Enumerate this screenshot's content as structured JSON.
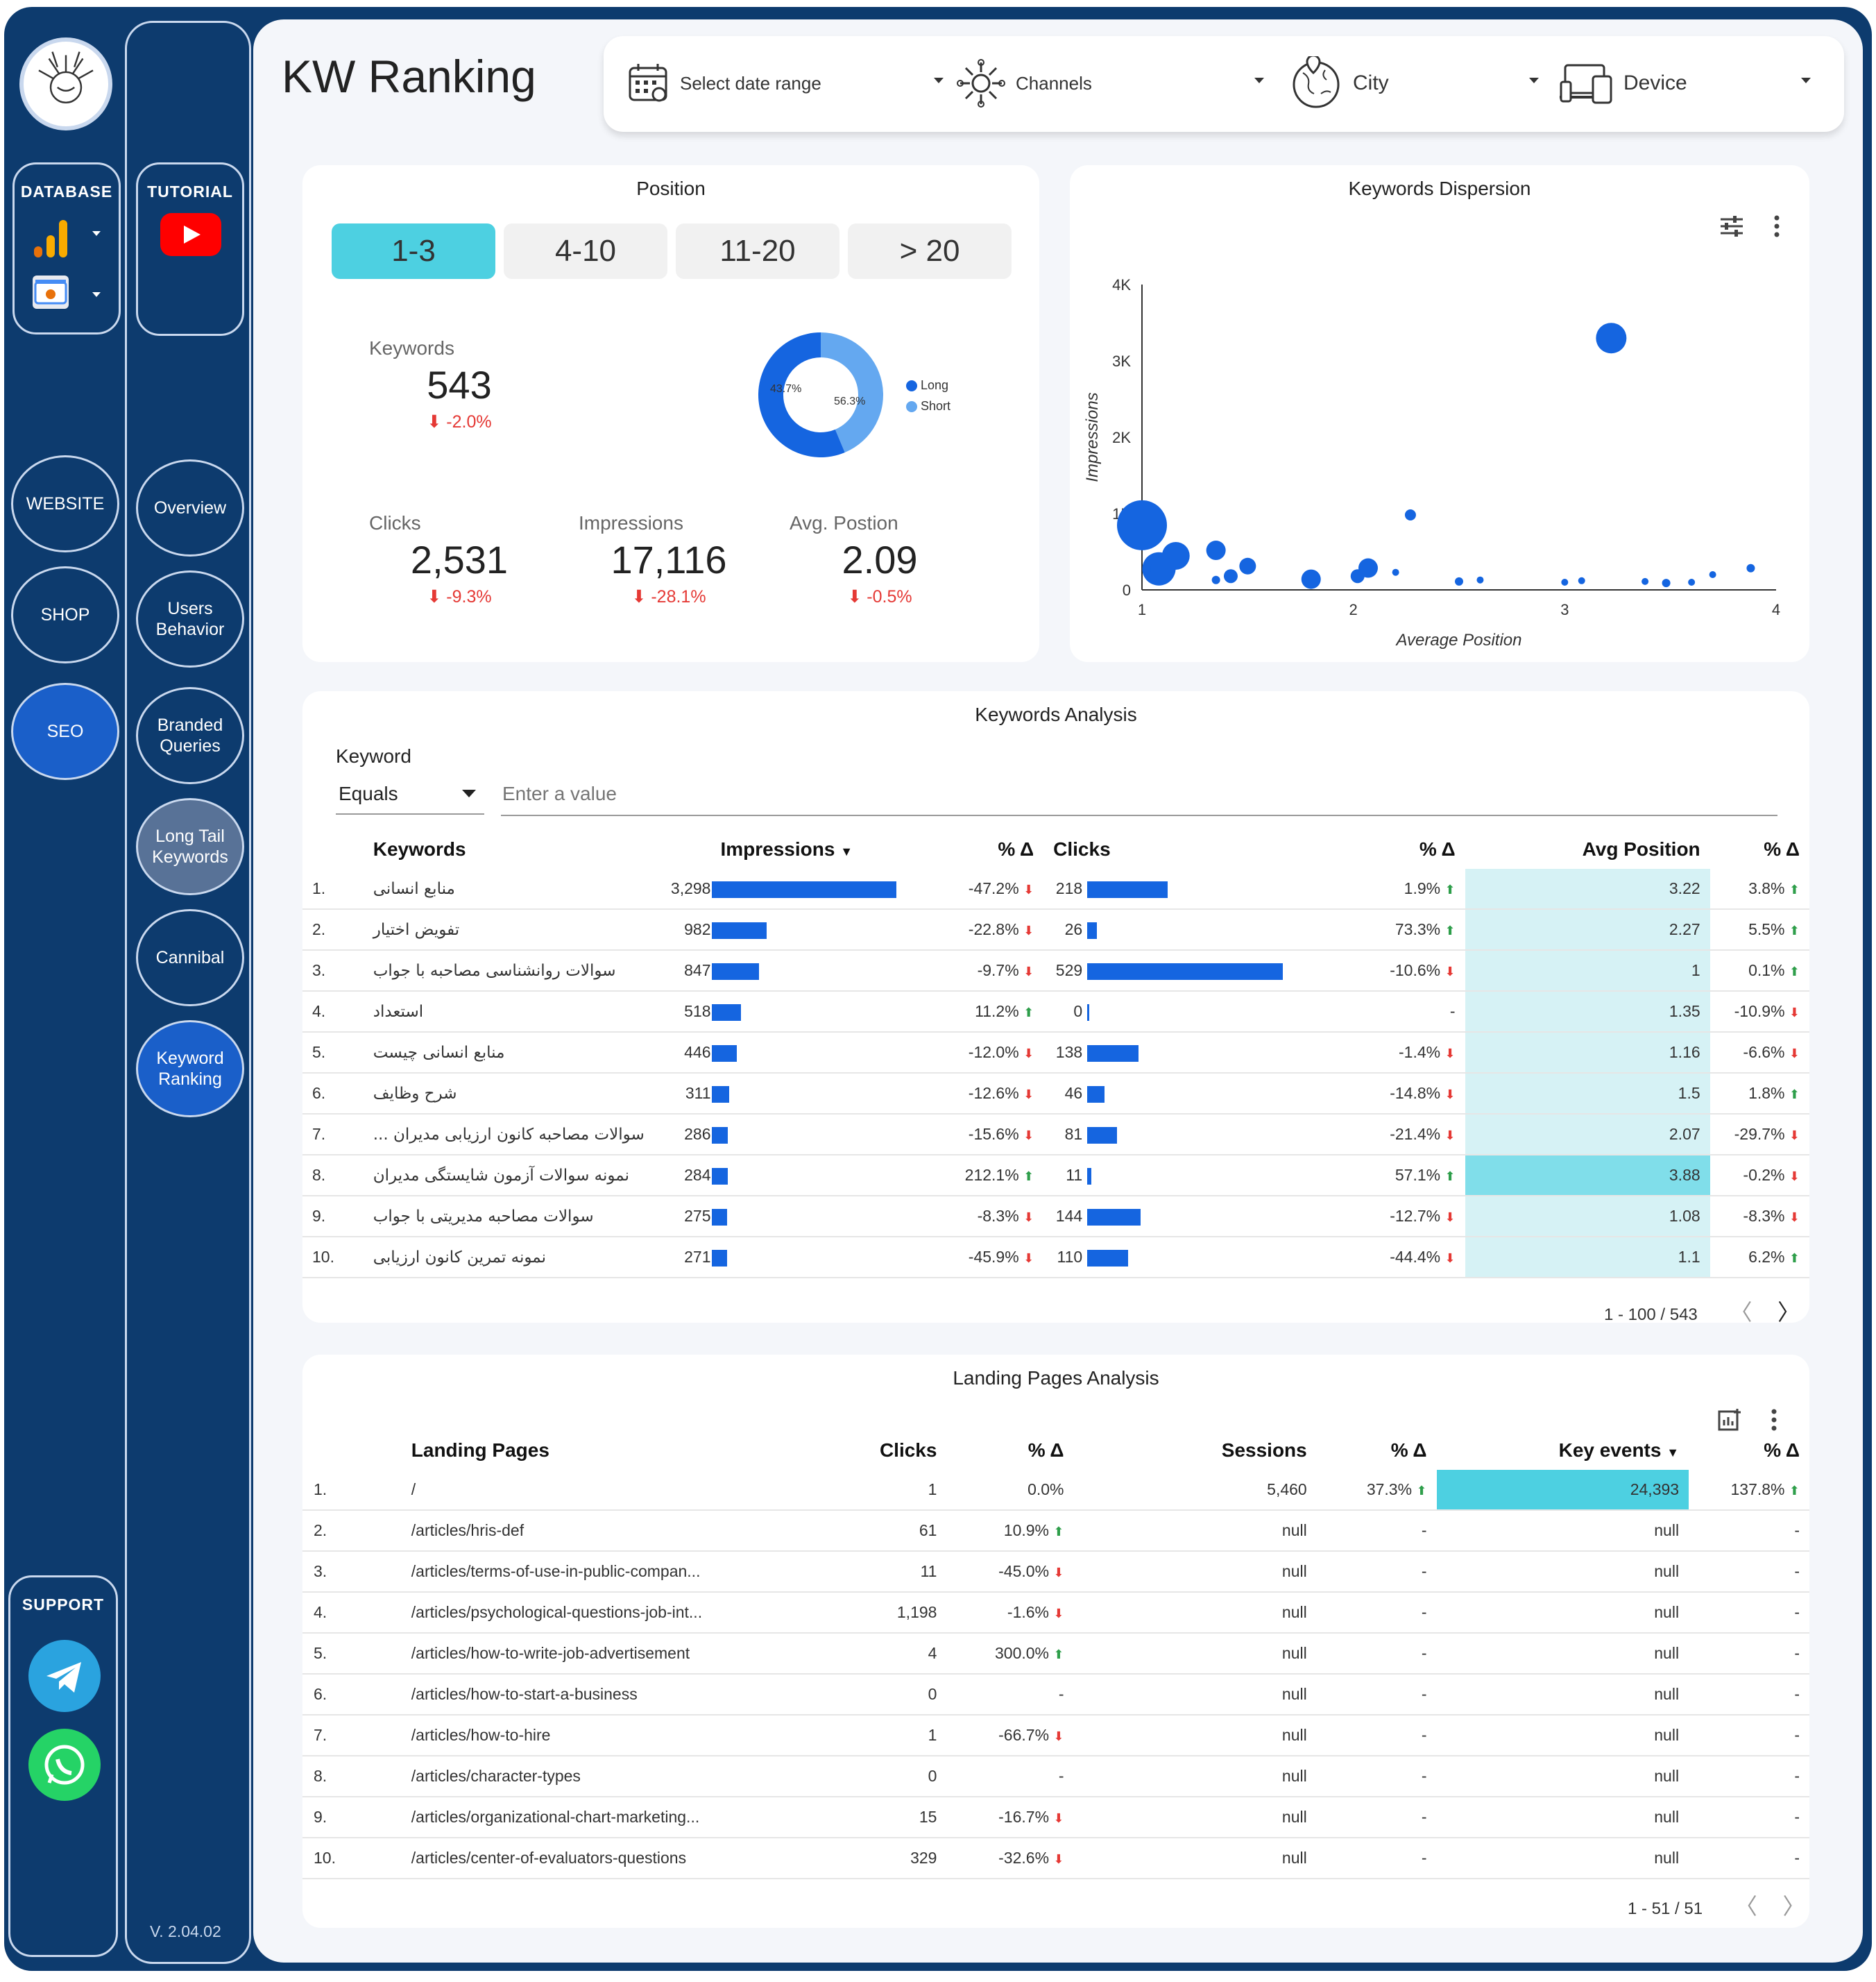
{
  "page": {
    "title": "KW Ranking",
    "version": "V. 2.04.02"
  },
  "sidebar": {
    "database_label": "DATABASE",
    "tutorial_label": "TUTORIAL",
    "support_label": "SUPPORT",
    "left_nav": [
      "WEBSITE",
      "SHOP",
      "SEO"
    ],
    "right_nav": [
      "Overview",
      "Users\nBehavior",
      "Branded\nQueries",
      "Long Tail\nKeywords",
      "Cannibal",
      "Keyword\nRanking"
    ]
  },
  "filters": {
    "date": "Select date range",
    "channels": "Channels",
    "city": "City",
    "device": "Device"
  },
  "position": {
    "title": "Position",
    "segments": [
      "1-3",
      "4-10",
      "11-20",
      "> 20"
    ],
    "keywords": {
      "label": "Keywords",
      "value": "543",
      "delta": "-2.0%"
    },
    "clicks": {
      "label": "Clicks",
      "value": "2,531",
      "delta": "-9.3%"
    },
    "impressions": {
      "label": "Impressions",
      "value": "17,116",
      "delta": "-28.1%"
    },
    "avg_position": {
      "label": "Avg. Postion",
      "value": "2.09",
      "delta": "-0.5%"
    },
    "donut": {
      "long_pct": 56.3,
      "short_pct": 43.7,
      "long_label": "56.3%",
      "short_label": "43.7%",
      "legend": [
        "Long",
        "Short"
      ],
      "colors": [
        "#1565e0",
        "#64a8f0"
      ]
    }
  },
  "chart_data": {
    "type": "scatter",
    "title": "Keywords Dispersion",
    "xlabel": "Average Position",
    "ylabel": "Impressions",
    "xlim": [
      1,
      4
    ],
    "ylim": [
      0,
      4000
    ],
    "xticks": [
      "1",
      "2",
      "3",
      "4"
    ],
    "yticks": [
      "0",
      "1K",
      "2K",
      "3K",
      "4K"
    ],
    "points": [
      {
        "x": 1.0,
        "y": 847,
        "r": 36
      },
      {
        "x": 1.08,
        "y": 275,
        "r": 24
      },
      {
        "x": 1.16,
        "y": 446,
        "r": 20
      },
      {
        "x": 1.1,
        "y": 271,
        "r": 18
      },
      {
        "x": 1.35,
        "y": 518,
        "r": 14
      },
      {
        "x": 1.5,
        "y": 311,
        "r": 12
      },
      {
        "x": 1.42,
        "y": 180,
        "r": 10
      },
      {
        "x": 1.35,
        "y": 130,
        "r": 6
      },
      {
        "x": 1.8,
        "y": 140,
        "r": 14
      },
      {
        "x": 2.07,
        "y": 286,
        "r": 14
      },
      {
        "x": 2.02,
        "y": 180,
        "r": 10
      },
      {
        "x": 2.2,
        "y": 230,
        "r": 5
      },
      {
        "x": 2.27,
        "y": 982,
        "r": 8
      },
      {
        "x": 2.5,
        "y": 110,
        "r": 6
      },
      {
        "x": 2.6,
        "y": 130,
        "r": 5
      },
      {
        "x": 3.0,
        "y": 100,
        "r": 5
      },
      {
        "x": 3.08,
        "y": 120,
        "r": 5
      },
      {
        "x": 3.22,
        "y": 3298,
        "r": 22
      },
      {
        "x": 3.38,
        "y": 110,
        "r": 5
      },
      {
        "x": 3.48,
        "y": 90,
        "r": 6
      },
      {
        "x": 3.6,
        "y": 100,
        "r": 5
      },
      {
        "x": 3.7,
        "y": 200,
        "r": 5
      },
      {
        "x": 3.88,
        "y": 284,
        "r": 6
      }
    ],
    "color": "#1565e0"
  },
  "keywords_analysis": {
    "title": "Keywords Analysis",
    "filter_label": "Keyword",
    "operator": "Equals",
    "placeholder": "Enter a value",
    "columns": [
      "Keywords",
      "Impressions",
      "% Δ",
      "Clicks",
      "% Δ",
      "Avg Position",
      "% Δ"
    ],
    "rows": [
      {
        "n": "1.",
        "kw": "منابع انسانی",
        "imp": 3298,
        "imp_d": "-47.2%",
        "imp_up": false,
        "clk": 218,
        "clk_d": "1.9%",
        "clk_up": true,
        "pos": "3.22",
        "pos_d": "3.8%",
        "pos_up": true
      },
      {
        "n": "2.",
        "kw": "تفویض اختیار",
        "imp": 982,
        "imp_d": "-22.8%",
        "imp_up": false,
        "clk": 26,
        "clk_d": "73.3%",
        "clk_up": true,
        "pos": "2.27",
        "pos_d": "5.5%",
        "pos_up": true
      },
      {
        "n": "3.",
        "kw": "سوالات روانشناسی مصاحبه با جواب",
        "imp": 847,
        "imp_d": "-9.7%",
        "imp_up": false,
        "clk": 529,
        "clk_d": "-10.6%",
        "clk_up": false,
        "pos": "1",
        "pos_d": "0.1%",
        "pos_up": true
      },
      {
        "n": "4.",
        "kw": "استعداد",
        "imp": 518,
        "imp_d": "11.2%",
        "imp_up": true,
        "clk": 0,
        "clk_d": "-",
        "clk_up": null,
        "pos": "1.35",
        "pos_d": "-10.9%",
        "pos_up": false
      },
      {
        "n": "5.",
        "kw": "منابع انسانی چیست",
        "imp": 446,
        "imp_d": "-12.0%",
        "imp_up": false,
        "clk": 138,
        "clk_d": "-1.4%",
        "clk_up": false,
        "pos": "1.16",
        "pos_d": "-6.6%",
        "pos_up": false
      },
      {
        "n": "6.",
        "kw": "شرح وظایف",
        "imp": 311,
        "imp_d": "-12.6%",
        "imp_up": false,
        "clk": 46,
        "clk_d": "-14.8%",
        "clk_up": false,
        "pos": "1.5",
        "pos_d": "1.8%",
        "pos_up": true
      },
      {
        "n": "7.",
        "kw": "سوالات مصاحبه کانون ارزیابی مدیران ...",
        "imp": 286,
        "imp_d": "-15.6%",
        "imp_up": false,
        "clk": 81,
        "clk_d": "-21.4%",
        "clk_up": false,
        "pos": "2.07",
        "pos_d": "-29.7%",
        "pos_up": false
      },
      {
        "n": "8.",
        "kw": "نمونه سوالات آزمون شایستگی مدیران",
        "imp": 284,
        "imp_d": "212.1%",
        "imp_up": true,
        "clk": 11,
        "clk_d": "57.1%",
        "clk_up": true,
        "pos": "3.88",
        "pos_d": "-0.2%",
        "pos_up": false
      },
      {
        "n": "9.",
        "kw": "سوالات مصاحبه مدیریتی با جواب",
        "imp": 275,
        "imp_d": "-8.3%",
        "imp_up": false,
        "clk": 144,
        "clk_d": "-12.7%",
        "clk_up": false,
        "pos": "1.08",
        "pos_d": "-8.3%",
        "pos_up": false
      },
      {
        "n": "10.",
        "kw": "نمونه تمرین کانون ارزیابی",
        "imp": 271,
        "imp_d": "-45.9%",
        "imp_up": false,
        "clk": 110,
        "clk_d": "-44.4%",
        "clk_up": false,
        "pos": "1.1",
        "pos_d": "6.2%",
        "pos_up": true
      }
    ],
    "pager": "1 - 100 / 543"
  },
  "landing_pages": {
    "title": "Landing Pages Analysis",
    "columns": [
      "Landing Pages",
      "Clicks",
      "% Δ",
      "Sessions",
      "% Δ",
      "Key events",
      "% Δ"
    ],
    "rows": [
      {
        "n": "1.",
        "page": "/",
        "clk": "1",
        "clk_d": "0.0%",
        "clk_up": null,
        "ses": "5,460",
        "ses_d": "37.3%",
        "ses_up": true,
        "ke": "24,393",
        "ke_d": "137.8%",
        "ke_up": true
      },
      {
        "n": "2.",
        "page": "/articles/hris-def",
        "clk": "61",
        "clk_d": "10.9%",
        "clk_up": true,
        "ses": "null",
        "ses_d": "-",
        "ses_up": null,
        "ke": "null",
        "ke_d": "-",
        "ke_up": null
      },
      {
        "n": "3.",
        "page": "/articles/terms-of-use-in-public-compan...",
        "clk": "11",
        "clk_d": "-45.0%",
        "clk_up": false,
        "ses": "null",
        "ses_d": "-",
        "ses_up": null,
        "ke": "null",
        "ke_d": "-",
        "ke_up": null
      },
      {
        "n": "4.",
        "page": "/articles/psychological-questions-job-int...",
        "clk": "1,198",
        "clk_d": "-1.6%",
        "clk_up": false,
        "ses": "null",
        "ses_d": "-",
        "ses_up": null,
        "ke": "null",
        "ke_d": "-",
        "ke_up": null
      },
      {
        "n": "5.",
        "page": "/articles/how-to-write-job-advertisement",
        "clk": "4",
        "clk_d": "300.0%",
        "clk_up": true,
        "ses": "null",
        "ses_d": "-",
        "ses_up": null,
        "ke": "null",
        "ke_d": "-",
        "ke_up": null
      },
      {
        "n": "6.",
        "page": "/articles/how-to-start-a-business",
        "clk": "0",
        "clk_d": "-",
        "clk_up": null,
        "ses": "null",
        "ses_d": "-",
        "ses_up": null,
        "ke": "null",
        "ke_d": "-",
        "ke_up": null
      },
      {
        "n": "7.",
        "page": "/articles/how-to-hire",
        "clk": "1",
        "clk_d": "-66.7%",
        "clk_up": false,
        "ses": "null",
        "ses_d": "-",
        "ses_up": null,
        "ke": "null",
        "ke_d": "-",
        "ke_up": null
      },
      {
        "n": "8.",
        "page": "/articles/character-types",
        "clk": "0",
        "clk_d": "-",
        "clk_up": null,
        "ses": "null",
        "ses_d": "-",
        "ses_up": null,
        "ke": "null",
        "ke_d": "-",
        "ke_up": null
      },
      {
        "n": "9.",
        "page": "/articles/organizational-chart-marketing...",
        "clk": "15",
        "clk_d": "-16.7%",
        "clk_up": false,
        "ses": "null",
        "ses_d": "-",
        "ses_up": null,
        "ke": "null",
        "ke_d": "-",
        "ke_up": null
      },
      {
        "n": "10.",
        "page": "/articles/center-of-evaluators-questions",
        "clk": "329",
        "clk_d": "-32.6%",
        "clk_up": false,
        "ses": "null",
        "ses_d": "-",
        "ses_up": null,
        "ke": "null",
        "ke_d": "-",
        "ke_up": null
      }
    ],
    "pager": "1 - 51 / 51"
  }
}
